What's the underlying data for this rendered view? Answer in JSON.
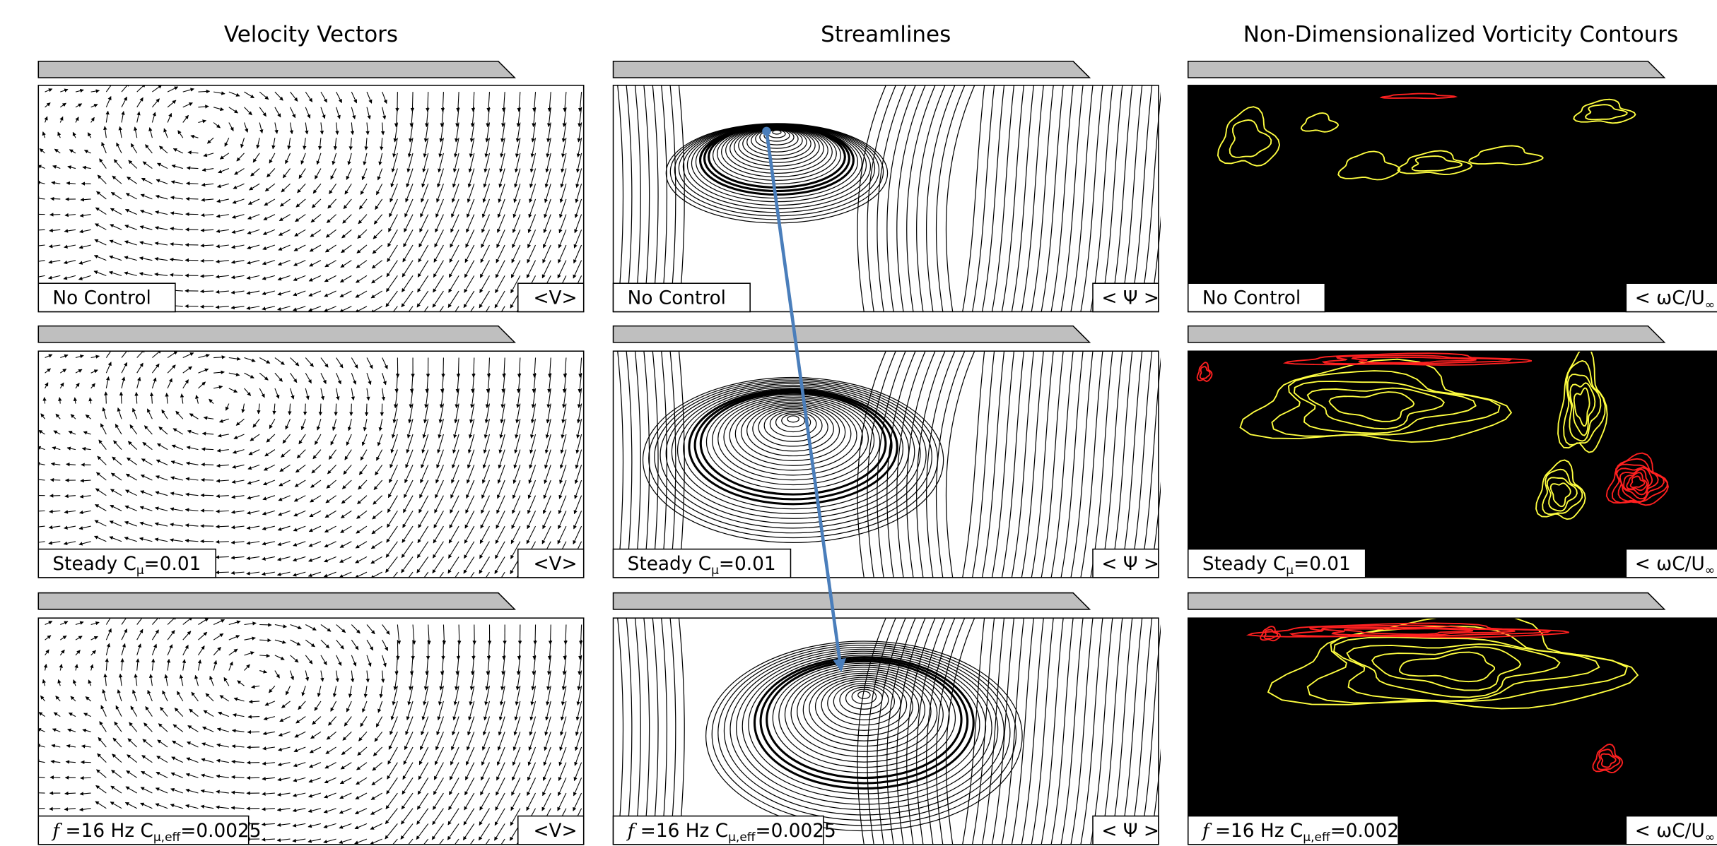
{
  "columns": [
    {
      "title": "Velocity Vectors"
    },
    {
      "title": "Streamlines"
    },
    {
      "title": "Non-Dimensionalized Vorticity Contours"
    }
  ],
  "rows": [
    {
      "label": [
        "No Control"
      ]
    },
    {
      "label": [
        "Steady  C",
        "μ",
        "=0.01"
      ]
    },
    {
      "label": [
        "f",
        " =16 Hz  C",
        "μ,eff",
        "=0.0025"
      ]
    }
  ],
  "badges": [
    [
      "<V>"
    ],
    [
      "< Ψ >"
    ],
    [
      "< ωC/U",
      "∞"
    ]
  ]
}
